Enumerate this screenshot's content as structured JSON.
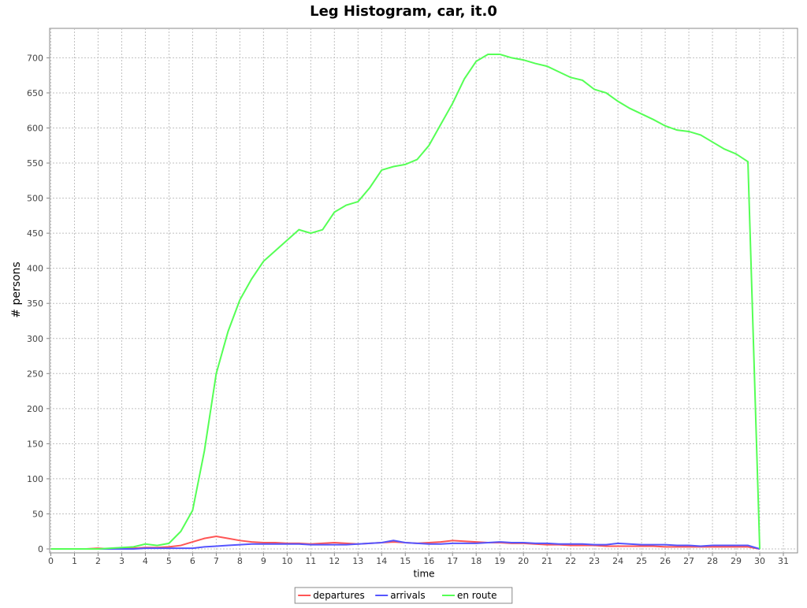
{
  "chart_data": {
    "type": "line",
    "title": "Leg Histogram, car, it.0",
    "x_label": "time",
    "y_label": "# persons",
    "x": [
      0,
      0.5,
      1,
      1.5,
      2,
      2.5,
      3,
      3.5,
      4,
      4.5,
      5,
      5.5,
      6,
      6.5,
      7,
      7.5,
      8,
      8.5,
      9,
      9.5,
      10,
      10.5,
      11,
      11.5,
      12,
      12.5,
      13,
      13.5,
      14,
      14.5,
      15,
      15.5,
      16,
      16.5,
      17,
      17.5,
      18,
      18.5,
      19,
      19.5,
      20,
      20.5,
      21,
      21.5,
      22,
      22.5,
      23,
      23.5,
      24,
      24.5,
      25,
      25.5,
      26,
      26.5,
      27,
      27.5,
      28,
      28.5,
      29,
      29.5,
      30
    ],
    "series": [
      {
        "name": "departures",
        "color": "#ff5555",
        "values": [
          0,
          0,
          0,
          0,
          1,
          0,
          1,
          1,
          2,
          2,
          3,
          5,
          10,
          15,
          18,
          15,
          12,
          10,
          9,
          9,
          8,
          8,
          7,
          8,
          9,
          8,
          7,
          8,
          9,
          10,
          9,
          8,
          9,
          10,
          12,
          11,
          10,
          9,
          9,
          8,
          8,
          7,
          6,
          6,
          5,
          5,
          5,
          4,
          4,
          4,
          4,
          4,
          3,
          3,
          3,
          3,
          3,
          3,
          3,
          3,
          0
        ]
      },
      {
        "name": "arrivals",
        "color": "#5555ff",
        "values": [
          0,
          0,
          0,
          0,
          0,
          0,
          0,
          0,
          1,
          1,
          1,
          1,
          1,
          3,
          4,
          5,
          6,
          7,
          7,
          7,
          7,
          7,
          6,
          6,
          6,
          6,
          7,
          8,
          9,
          12,
          9,
          8,
          7,
          7,
          8,
          8,
          8,
          9,
          10,
          9,
          9,
          8,
          8,
          7,
          7,
          7,
          6,
          6,
          8,
          7,
          6,
          6,
          6,
          5,
          5,
          4,
          5,
          5,
          5,
          5,
          0
        ]
      },
      {
        "name": "en route",
        "color": "#55ff55",
        "values": [
          0,
          0,
          0,
          0,
          0,
          1,
          2,
          3,
          7,
          5,
          8,
          25,
          55,
          140,
          250,
          310,
          355,
          385,
          410,
          425,
          440,
          455,
          450,
          455,
          480,
          490,
          495,
          515,
          540,
          545,
          548,
          555,
          575,
          605,
          635,
          670,
          695,
          705,
          705,
          700,
          697,
          692,
          688,
          680,
          672,
          668,
          655,
          650,
          638,
          628,
          620,
          612,
          603,
          597,
          595,
          590,
          580,
          570,
          563,
          552,
          0
        ]
      }
    ],
    "xlim": [
      -0.05,
      31.6
    ],
    "ylim": [
      -5.6,
      742
    ],
    "xticks": [
      0,
      1,
      2,
      3,
      4,
      5,
      6,
      7,
      8,
      9,
      10,
      11,
      12,
      13,
      14,
      15,
      16,
      17,
      18,
      19,
      20,
      21,
      22,
      23,
      24,
      25,
      26,
      27,
      28,
      29,
      30,
      31
    ],
    "yticks": [
      0,
      50,
      100,
      150,
      200,
      250,
      300,
      350,
      400,
      450,
      500,
      550,
      600,
      650,
      700
    ],
    "grid": true,
    "legend": "bottom"
  }
}
